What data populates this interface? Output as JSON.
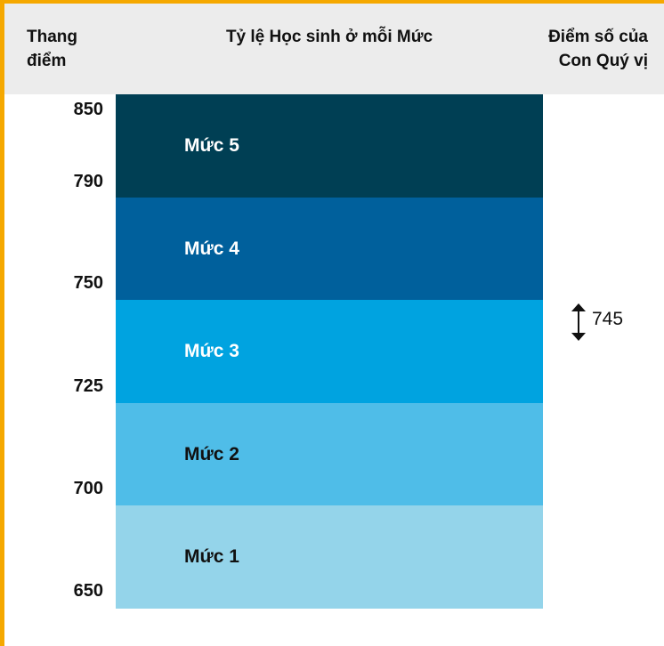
{
  "header": {
    "scale": "Thang điểm",
    "levels": "Tỷ lệ Học sinh ở mỗi Mức",
    "score": "Điểm số của Con Quý vị"
  },
  "scale": [
    850,
    790,
    750,
    725,
    700,
    650
  ],
  "levels": [
    "Mức 5",
    "Mức 4",
    "Mức 3",
    "Mức 2",
    "Mức 1"
  ],
  "score": 745
}
